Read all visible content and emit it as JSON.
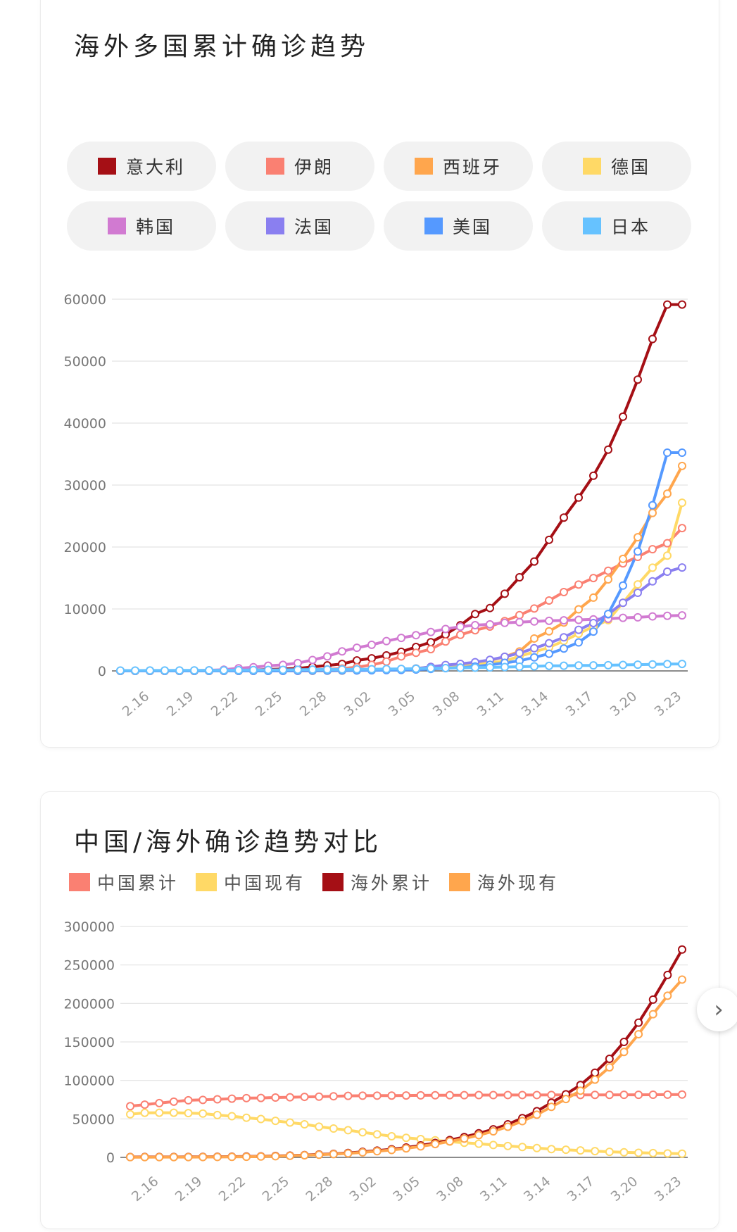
{
  "card1": {
    "title": "海外多国累计确诊趋势",
    "legend": [
      {
        "label": "意大利",
        "color": "#a50f15"
      },
      {
        "label": "伊朗",
        "color": "#fa8072"
      },
      {
        "label": "西班牙",
        "color": "#ffa64d"
      },
      {
        "label": "德国",
        "color": "#ffd966"
      },
      {
        "label": "韩国",
        "color": "#d17ad1"
      },
      {
        "label": "法国",
        "color": "#8a7ff0"
      },
      {
        "label": "美国",
        "color": "#5599ff"
      },
      {
        "label": "日本",
        "color": "#66c2ff"
      }
    ]
  },
  "card2": {
    "title": "中国/海外确诊趋势对比",
    "legend": [
      {
        "label": "中国累计",
        "color": "#fa8072"
      },
      {
        "label": "中国现有",
        "color": "#ffd966"
      },
      {
        "label": "海外累计",
        "color": "#a50f15"
      },
      {
        "label": "海外现有",
        "color": "#ffa64d"
      }
    ]
  },
  "chart_data": [
    {
      "type": "line",
      "title": "海外多国累计确诊趋势",
      "x": [
        "2.14",
        "2.15",
        "2.16",
        "2.17",
        "2.18",
        "2.19",
        "2.20",
        "2.21",
        "2.22",
        "2.23",
        "2.24",
        "2.25",
        "2.26",
        "2.27",
        "2.28",
        "2.29",
        "3.01",
        "3.02",
        "3.03",
        "3.04",
        "3.05",
        "3.06",
        "3.07",
        "3.08",
        "3.09",
        "3.10",
        "3.11",
        "3.12",
        "3.13",
        "3.14",
        "3.15",
        "3.16",
        "3.17",
        "3.18",
        "3.19",
        "3.20",
        "3.21",
        "3.22",
        "3.23"
      ],
      "xtick_labels": [
        "2.16",
        "2.19",
        "2.22",
        "2.25",
        "2.28",
        "3.02",
        "3.05",
        "3.08",
        "3.11",
        "3.14",
        "3.17",
        "3.20",
        "3.23"
      ],
      "ylim": [
        0,
        60000
      ],
      "yticks": [
        0,
        10000,
        20000,
        30000,
        40000,
        50000,
        60000
      ],
      "grid": true,
      "legend_position": "top",
      "series": [
        {
          "name": "意大利",
          "color": "#a50f15",
          "values": [
            3,
            3,
            3,
            3,
            3,
            3,
            3,
            20,
            79,
            150,
            229,
            322,
            400,
            650,
            888,
            1128,
            1694,
            2036,
            2502,
            3089,
            3858,
            4636,
            5883,
            7375,
            9172,
            10149,
            12462,
            15113,
            17660,
            21157,
            24747,
            27980,
            31506,
            35713,
            41035,
            47021,
            53578,
            59138,
            59138
          ]
        },
        {
          "name": "伊朗",
          "color": "#fa8072",
          "values": [
            0,
            0,
            0,
            0,
            0,
            0,
            2,
            5,
            18,
            28,
            43,
            61,
            95,
            139,
            245,
            388,
            593,
            978,
            1501,
            2336,
            2922,
            3513,
            4747,
            5823,
            6566,
            7161,
            8042,
            9000,
            10075,
            11364,
            12729,
            13938,
            14991,
            16169,
            17361,
            18407,
            19644,
            20610,
            23049
          ]
        },
        {
          "name": "西班牙",
          "color": "#ffa64d",
          "values": [
            2,
            2,
            2,
            2,
            2,
            2,
            2,
            2,
            2,
            2,
            2,
            6,
            13,
            15,
            32,
            45,
            84,
            120,
            165,
            222,
            259,
            400,
            500,
            673,
            1073,
            1695,
            2277,
            3146,
            5232,
            6391,
            7798,
            9942,
            11826,
            14769,
            18077,
            21571,
            25496,
            28603,
            33089
          ]
        },
        {
          "name": "德国",
          "color": "#ffd966",
          "values": [
            16,
            16,
            16,
            16,
            16,
            16,
            16,
            16,
            16,
            16,
            16,
            18,
            21,
            26,
            53,
            66,
            117,
            150,
            188,
            240,
            400,
            639,
            795,
            902,
            1139,
            1296,
            1567,
            2369,
            3062,
            3795,
            4838,
            6012,
            7156,
            8198,
            10999,
            13957,
            16662,
            18610,
            27146
          ]
        },
        {
          "name": "韩国",
          "color": "#d17ad1",
          "values": [
            28,
            28,
            29,
            30,
            31,
            51,
            104,
            204,
            433,
            602,
            833,
            977,
            1261,
            1766,
            2337,
            3150,
            3736,
            4212,
            4812,
            5328,
            5766,
            6284,
            6767,
            7134,
            7382,
            7513,
            7755,
            7869,
            7979,
            8086,
            8162,
            8236,
            8320,
            8413,
            8565,
            8652,
            8799,
            8897,
            8961
          ]
        },
        {
          "name": "法国",
          "color": "#8a7ff0",
          "values": [
            12,
            12,
            12,
            12,
            12,
            12,
            12,
            12,
            12,
            12,
            12,
            14,
            18,
            38,
            57,
            100,
            130,
            191,
            204,
            288,
            380,
            656,
            957,
            1136,
            1412,
            1784,
            2284,
            2876,
            3661,
            4469,
            5423,
            6633,
            7730,
            9134,
            10995,
            12612,
            14459,
            16018,
            16689
          ]
        },
        {
          "name": "美国",
          "color": "#5599ff",
          "values": [
            15,
            15,
            15,
            15,
            15,
            15,
            15,
            15,
            15,
            15,
            15,
            15,
            59,
            60,
            62,
            70,
            76,
            100,
            124,
            158,
            221,
            319,
            435,
            541,
            704,
            994,
            1301,
            1630,
            2183,
            2770,
            3613,
            4596,
            6344,
            9197,
            13779,
            19273,
            26747,
            35224,
            35224
          ]
        },
        {
          "name": "日本",
          "color": "#66c2ff",
          "values": [
            59,
            61,
            66,
            66,
            74,
            84,
            94,
            105,
            122,
            147,
            159,
            170,
            189,
            214,
            228,
            241,
            256,
            274,
            293,
            331,
            360,
            420,
            461,
            502,
            530,
            568,
            620,
            675,
            737,
            815,
            833,
            878,
            889,
            924,
            963,
            1007,
            1054,
            1101,
            1128
          ]
        }
      ]
    },
    {
      "type": "line",
      "title": "中国/海外确诊趋势对比",
      "x": [
        "2.14",
        "2.15",
        "2.16",
        "2.17",
        "2.18",
        "2.19",
        "2.20",
        "2.21",
        "2.22",
        "2.23",
        "2.24",
        "2.25",
        "2.26",
        "2.27",
        "2.28",
        "2.29",
        "3.01",
        "3.02",
        "3.03",
        "3.04",
        "3.05",
        "3.06",
        "3.07",
        "3.08",
        "3.09",
        "3.10",
        "3.11",
        "3.12",
        "3.13",
        "3.14",
        "3.15",
        "3.16",
        "3.17",
        "3.18",
        "3.19",
        "3.20",
        "3.21",
        "3.22",
        "3.23"
      ],
      "xtick_labels": [
        "2.16",
        "2.19",
        "2.22",
        "2.25",
        "2.28",
        "3.02",
        "3.05",
        "3.08",
        "3.11",
        "3.14",
        "3.17",
        "3.20",
        "3.23"
      ],
      "ylim": [
        0,
        300000
      ],
      "yticks": [
        0,
        50000,
        100000,
        150000,
        200000,
        250000,
        300000
      ],
      "grid": true,
      "legend_position": "top",
      "series": [
        {
          "name": "中国累计",
          "color": "#fa8072",
          "values": [
            66500,
            68500,
            70500,
            72400,
            74200,
            74700,
            75500,
            76300,
            77000,
            77200,
            77700,
            78100,
            78600,
            78900,
            79400,
            79900,
            80100,
            80200,
            80300,
            80400,
            80600,
            80700,
            80800,
            80800,
            80900,
            80900,
            81000,
            81000,
            81000,
            81100,
            81100,
            81100,
            81200,
            81200,
            81300,
            81300,
            81400,
            81500,
            81600
          ]
        },
        {
          "name": "中国现有",
          "color": "#ffd966",
          "values": [
            56000,
            57900,
            58000,
            58000,
            57500,
            56900,
            55000,
            53500,
            51500,
            49800,
            47400,
            45300,
            43000,
            39900,
            37500,
            35300,
            32600,
            30000,
            27400,
            25400,
            23800,
            22200,
            20500,
            19000,
            17700,
            16100,
            14800,
            13500,
            12100,
            10700,
            9900,
            9000,
            8100,
            7200,
            6600,
            6000,
            5600,
            5100,
            4800
          ]
        },
        {
          "name": "海外累计",
          "color": "#a50f15",
          "values": [
            500,
            520,
            560,
            580,
            620,
            700,
            800,
            900,
            1100,
            1400,
            1800,
            2300,
            3000,
            3800,
            4600,
            5700,
            7200,
            8800,
            10500,
            12800,
            15500,
            18700,
            22500,
            26400,
            31300,
            36500,
            43000,
            51000,
            60000,
            71000,
            82000,
            94000,
            110000,
            128000,
            150000,
            175000,
            205000,
            237000,
            270000
          ]
        },
        {
          "name": "海外现有",
          "color": "#ffa64d",
          "values": [
            300,
            320,
            350,
            370,
            400,
            470,
            560,
            650,
            800,
            1100,
            1500,
            2000,
            2700,
            3400,
            4200,
            5200,
            6500,
            8000,
            9600,
            11700,
            14300,
            17300,
            20800,
            24400,
            28900,
            33800,
            39800,
            47100,
            55400,
            65600,
            75800,
            86600,
            101000,
            117000,
            137000,
            160000,
            186000,
            210000,
            231000
          ]
        }
      ]
    }
  ]
}
